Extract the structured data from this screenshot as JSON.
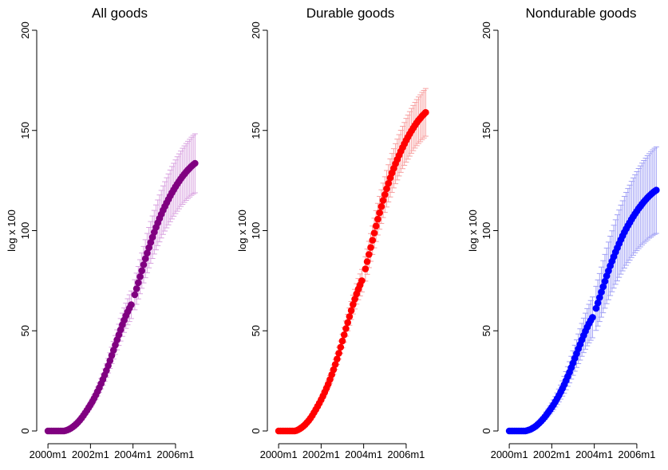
{
  "chart_data": [
    {
      "type": "errorbar-scatter",
      "title": "All goods",
      "y_label": "log x 100",
      "x": [
        480,
        481,
        482,
        483,
        484,
        485,
        486,
        487,
        488,
        489,
        490,
        491,
        492,
        493,
        494,
        495,
        496,
        497,
        498,
        499,
        500,
        501,
        502,
        503,
        504,
        505,
        506,
        507,
        508,
        509,
        510,
        511,
        512,
        513,
        514,
        515,
        516,
        517,
        518,
        519,
        520,
        521,
        522,
        523,
        524,
        525,
        526,
        527,
        528,
        529,
        530,
        531,
        532,
        533,
        534,
        535,
        536,
        537,
        538,
        539,
        540,
        541,
        542,
        543,
        544,
        545,
        546,
        547,
        548,
        549,
        550,
        551,
        552,
        553,
        554,
        555,
        556,
        557,
        558,
        559,
        560,
        561,
        562,
        563
      ],
      "xlim": [
        475,
        566
      ],
      "xticks": [
        {
          "value": 480,
          "label": "2000m1"
        },
        {
          "value": 504,
          "label": "2002m1"
        },
        {
          "value": 528,
          "label": "2004m1"
        },
        {
          "value": 552,
          "label": "2006m1"
        }
      ],
      "ylim": [
        0,
        200
      ],
      "yticks": [
        0,
        50,
        100,
        150,
        200
      ],
      "series": [
        {
          "color": "#800080",
          "error_color": "#d9a3e0",
          "values": [
            0,
            0,
            0,
            0,
            0,
            0,
            0,
            0,
            0,
            0,
            0.2,
            0.5,
            0.9,
            1.4,
            2,
            2.7,
            3.5,
            4.4,
            5.4,
            6.5,
            7.7,
            9,
            10.3,
            11.7,
            13.1,
            14.6,
            16.2,
            17.9,
            19.7,
            21.6,
            23.6,
            25.7,
            27.9,
            30.2,
            32.6,
            35.1,
            37.7,
            40.3,
            42.9,
            45.5,
            48,
            50.5,
            53,
            55.3,
            57.5,
            59.5,
            61.3,
            63,
            null,
            68,
            71,
            74,
            77,
            80,
            83,
            86,
            88.8,
            91.5,
            94.1,
            96.7,
            99.2,
            101.6,
            103.9,
            106.1,
            108.2,
            110.2,
            112.1,
            113.9,
            115.6,
            117.3,
            118.9,
            120.4,
            121.9,
            123.3,
            124.6,
            125.9,
            127.1,
            128.2,
            129.3,
            130.3,
            131.2,
            132.1,
            132.9,
            133.6
          ],
          "errors": [
            0,
            0,
            0,
            0,
            0,
            0,
            0,
            0,
            0,
            0,
            0,
            0.1,
            0.1,
            0.2,
            0.2,
            0.3,
            0.4,
            0.5,
            0.6,
            0.7,
            0.8,
            1,
            1.1,
            1.3,
            1.4,
            1.6,
            1.8,
            2,
            2.2,
            2.4,
            2.6,
            2.8,
            3.1,
            3.3,
            3.6,
            3.9,
            4.1,
            4.4,
            4.7,
            5,
            5.3,
            5.6,
            5.8,
            6.1,
            6.3,
            6.5,
            6.7,
            6.9,
            null,
            7.5,
            7.8,
            8.1,
            8.5,
            8.8,
            9.1,
            9.5,
            9.8,
            10.1,
            10.4,
            10.6,
            10.9,
            11.2,
            11.4,
            11.7,
            11.9,
            12.1,
            12.3,
            12.5,
            12.7,
            12.9,
            13.1,
            13.2,
            13.4,
            13.6,
            13.7,
            13.8,
            14,
            14.1,
            14.2,
            14.3,
            14.4,
            14.5,
            14.6,
            14.7
          ]
        }
      ]
    },
    {
      "type": "errorbar-scatter",
      "title": "Durable goods",
      "y_label": "log x 100",
      "x": [
        480,
        481,
        482,
        483,
        484,
        485,
        486,
        487,
        488,
        489,
        490,
        491,
        492,
        493,
        494,
        495,
        496,
        497,
        498,
        499,
        500,
        501,
        502,
        503,
        504,
        505,
        506,
        507,
        508,
        509,
        510,
        511,
        512,
        513,
        514,
        515,
        516,
        517,
        518,
        519,
        520,
        521,
        522,
        523,
        524,
        525,
        526,
        527,
        528,
        529,
        530,
        531,
        532,
        533,
        534,
        535,
        536,
        537,
        538,
        539,
        540,
        541,
        542,
        543,
        544,
        545,
        546,
        547,
        548,
        549,
        550,
        551,
        552,
        553,
        554,
        555,
        556,
        557,
        558,
        559,
        560,
        561,
        562,
        563
      ],
      "xlim": [
        475,
        566
      ],
      "xticks": [
        {
          "value": 480,
          "label": "2000m1"
        },
        {
          "value": 504,
          "label": "2002m1"
        },
        {
          "value": 528,
          "label": "2004m1"
        },
        {
          "value": 552,
          "label": "2006m1"
        }
      ],
      "ylim": [
        0,
        200
      ],
      "yticks": [
        0,
        50,
        100,
        150,
        200
      ],
      "series": [
        {
          "color": "#ff0000",
          "error_color": "#f7a0a0",
          "values": [
            0,
            0,
            0,
            0,
            0,
            0,
            0,
            0,
            0,
            0,
            0.2,
            0.6,
            1.1,
            1.7,
            2.4,
            3.2,
            4.2,
            5.2,
            6.4,
            7.7,
            9.2,
            10.7,
            12.3,
            13.9,
            15.6,
            17.4,
            19.3,
            21.3,
            23.4,
            25.7,
            28.1,
            30.6,
            33.2,
            35.9,
            38.8,
            41.8,
            44.9,
            48,
            51.1,
            54.1,
            57.1,
            60.1,
            63.1,
            65.8,
            68.4,
            70.8,
            72.9,
            75,
            null,
            80.9,
            84.5,
            88.1,
            91.6,
            95.2,
            98.8,
            102.3,
            105.7,
            108.9,
            112,
            115.1,
            118,
            120.9,
            123.6,
            126.3,
            128.8,
            131.1,
            133.4,
            135.5,
            137.6,
            139.6,
            141.5,
            143.3,
            145.1,
            146.7,
            148.3,
            149.8,
            151.2,
            152.6,
            153.9,
            155.1,
            156.1,
            157.2,
            158.1,
            159
          ],
          "errors": [
            0,
            0,
            0,
            0,
            0,
            0,
            0,
            0,
            0,
            0,
            0,
            0,
            0.1,
            0.1,
            0.2,
            0.2,
            0.3,
            0.4,
            0.5,
            0.6,
            0.7,
            0.8,
            0.9,
            1,
            1.2,
            1.3,
            1.4,
            1.6,
            1.8,
            1.9,
            2.1,
            2.3,
            2.5,
            2.7,
            2.9,
            3.1,
            3.4,
            3.6,
            3.8,
            4.1,
            4.3,
            4.5,
            4.7,
            4.9,
            5.1,
            5.3,
            5.5,
            5.6,
            null,
            6.1,
            6.3,
            6.6,
            6.9,
            7.1,
            7.4,
            7.7,
            7.9,
            8.2,
            8.4,
            8.6,
            8.9,
            9.1,
            9.3,
            9.5,
            9.7,
            9.8,
            10,
            10.2,
            10.3,
            10.5,
            10.6,
            10.7,
            10.9,
            11,
            11.1,
            11.2,
            11.3,
            11.4,
            11.5,
            11.6,
            11.7,
            11.8,
            11.9,
            11.9
          ]
        }
      ]
    },
    {
      "type": "errorbar-scatter",
      "title": "Nondurable goods",
      "y_label": "log x 100",
      "x": [
        480,
        481,
        482,
        483,
        484,
        485,
        486,
        487,
        488,
        489,
        490,
        491,
        492,
        493,
        494,
        495,
        496,
        497,
        498,
        499,
        500,
        501,
        502,
        503,
        504,
        505,
        506,
        507,
        508,
        509,
        510,
        511,
        512,
        513,
        514,
        515,
        516,
        517,
        518,
        519,
        520,
        521,
        522,
        523,
        524,
        525,
        526,
        527,
        528,
        529,
        530,
        531,
        532,
        533,
        534,
        535,
        536,
        537,
        538,
        539,
        540,
        541,
        542,
        543,
        544,
        545,
        546,
        547,
        548,
        549,
        550,
        551,
        552,
        553,
        554,
        555,
        556,
        557,
        558,
        559,
        560,
        561,
        562,
        563
      ],
      "xlim": [
        475,
        566
      ],
      "xticks": [
        {
          "value": 480,
          "label": "2000m1"
        },
        {
          "value": 504,
          "label": "2002m1"
        },
        {
          "value": 528,
          "label": "2004m1"
        },
        {
          "value": 552,
          "label": "2006m1"
        }
      ],
      "ylim": [
        0,
        200
      ],
      "yticks": [
        0,
        50,
        100,
        150,
        200
      ],
      "series": [
        {
          "color": "#0000ff",
          "error_color": "#a0a0f5",
          "values": [
            0,
            0,
            0,
            0,
            0,
            0,
            0,
            0,
            0,
            0,
            0.2,
            0.5,
            0.8,
            1.3,
            1.8,
            2.4,
            3.2,
            4,
            4.9,
            5.9,
            6.9,
            8.1,
            9.3,
            10.5,
            11.8,
            13.1,
            14.6,
            16.1,
            17.7,
            19.4,
            21.2,
            23.1,
            25.1,
            27.2,
            29.3,
            31.6,
            33.9,
            36.3,
            38.6,
            41,
            43.2,
            45.5,
            47.7,
            49.8,
            51.8,
            53.6,
            55.2,
            56.7,
            null,
            61.2,
            63.9,
            66.6,
            69.3,
            72,
            74.7,
            77.4,
            79.9,
            82.4,
            84.7,
            87,
            89.3,
            91.4,
            93.5,
            95.5,
            97.4,
            99.2,
            100.9,
            102.5,
            104,
            105.6,
            107,
            108.4,
            109.7,
            111,
            112.1,
            113.3,
            114.4,
            115.4,
            116.4,
            117.3,
            118.1,
            118.9,
            119.6,
            120.2
          ],
          "errors": [
            0,
            0,
            0,
            0,
            0,
            0,
            0,
            0,
            0,
            0,
            0,
            0.1,
            0.1,
            0.2,
            0.3,
            0.4,
            0.6,
            0.7,
            0.9,
            1.1,
            1.2,
            1.5,
            1.7,
            1.9,
            2.1,
            2.4,
            2.6,
            2.9,
            3.2,
            3.5,
            3.8,
            4.2,
            4.5,
            4.9,
            5.3,
            5.7,
            6.1,
            6.5,
            6.9,
            7.4,
            7.8,
            8.2,
            8.6,
            9,
            9.3,
            9.6,
            9.9,
            10.2,
            null,
            11,
            11.5,
            12,
            12.5,
            13,
            13.4,
            13.9,
            14.4,
            14.8,
            15.2,
            15.7,
            16.1,
            16.5,
            16.8,
            17.2,
            17.5,
            17.9,
            18.2,
            18.5,
            18.7,
            19,
            19.3,
            19.5,
            19.7,
            20,
            20.2,
            20.4,
            20.6,
            20.8,
            21,
            21.1,
            21.3,
            21.4,
            21.5,
            21.6
          ]
        }
      ]
    }
  ]
}
